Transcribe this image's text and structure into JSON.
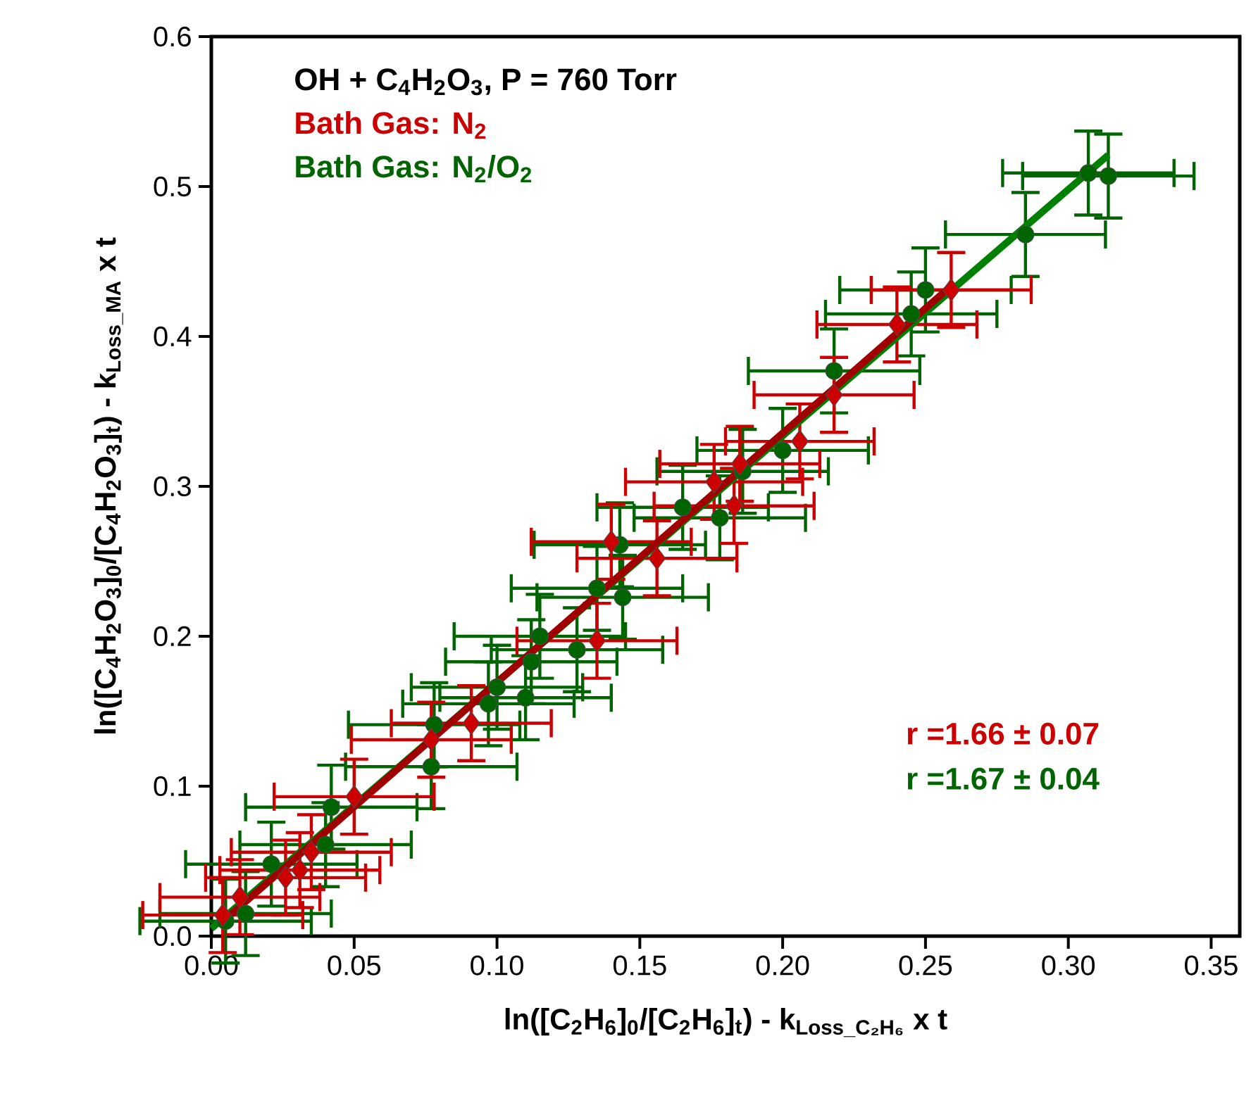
{
  "chart_data": {
    "type": "scatter",
    "title": "OH +  C$_{4}$H$_{2}$O$_{3}$, P = 760 Torr",
    "xlabel": "ln([C$_{2}$H$_{6}$]$_{0}$/[C$_{2}$H$_{6}$]$_{t}$) - k$_{Loss_C₂H₆}$ x t",
    "ylabel": "ln([C$_{4}$H$_{2}$O$_{3}$]$_{0}$/[C$_{4}$H$_{2}$O$_{3}$]$_{t}$) - k$_{Loss_MA}$ x t",
    "xlim": [
      0,
      0.36
    ],
    "ylim": [
      0,
      0.6
    ],
    "xticks": [
      {
        "value": 0,
        "label": "0.00"
      },
      {
        "value": 0.05,
        "label": "0.05"
      },
      {
        "value": 0.1,
        "label": "0.10"
      },
      {
        "value": 0.15,
        "label": "0.15"
      },
      {
        "value": 0.2,
        "label": "0.20"
      },
      {
        "value": 0.25,
        "label": "0.25"
      },
      {
        "value": 0.3,
        "label": "0.30"
      },
      {
        "value": 0.35,
        "label": "0.35"
      }
    ],
    "yticks": [
      {
        "value": 0,
        "label": "0.0"
      },
      {
        "value": 0.1,
        "label": "0.1"
      },
      {
        "value": 0.2,
        "label": "0.2"
      },
      {
        "value": 0.3,
        "label": "0.3"
      },
      {
        "value": 0.4,
        "label": "0.4"
      },
      {
        "value": 0.5,
        "label": "0.5"
      },
      {
        "value": 0.6,
        "label": "0.6"
      }
    ],
    "grid": false,
    "legend": "top left",
    "annotations": [
      "r =1.66 ± 0.07",
      "r =1.67 ± 0.04"
    ],
    "series": [
      {
        "name": "Bath Gas: N$_{2}$/O$_{2}$",
        "type": "scatter",
        "marker": "circle",
        "color": "#006400",
        "x": [
          0.005,
          0.012,
          0.021,
          0.04,
          0.042,
          0.077,
          0.078,
          0.097,
          0.1,
          0.11,
          0.112,
          0.115,
          0.128,
          0.135,
          0.143,
          0.144,
          0.165,
          0.178,
          0.186,
          0.2,
          0.218,
          0.245,
          0.25,
          0.285,
          0.307,
          0.314
        ],
        "values": [
          0.01,
          0.015,
          0.048,
          0.061,
          0.086,
          0.113,
          0.141,
          0.155,
          0.166,
          0.159,
          0.183,
          0.2,
          0.191,
          0.232,
          0.261,
          0.226,
          0.286,
          0.279,
          0.31,
          0.324,
          0.377,
          0.415,
          0.431,
          0.468,
          0.509,
          0.507
        ],
        "xerrors": [
          0.03,
          0.03,
          0.03,
          0.03,
          0.03,
          0.03,
          0.03,
          0.03,
          0.03,
          0.03,
          0.03,
          0.03,
          0.03,
          0.03,
          0.03,
          0.03,
          0.03,
          0.03,
          0.03,
          0.03,
          0.03,
          0.03,
          0.03,
          0.028,
          0.03,
          0.03
        ],
        "errors": [
          0.028,
          0.028,
          0.028,
          0.028,
          0.028,
          0.028,
          0.028,
          0.028,
          0.028,
          0.028,
          0.028,
          0.028,
          0.028,
          0.028,
          0.028,
          0.028,
          0.028,
          0.028,
          0.028,
          0.028,
          0.028,
          0.028,
          0.028,
          0.028,
          0.028,
          0.028
        ]
      },
      {
        "name": "Bath Gas: N$_{2}$",
        "type": "scatter",
        "marker": "diamond",
        "color": "#cc0000",
        "x": [
          0.004,
          0.01,
          0.026,
          0.031,
          0.035,
          0.05,
          0.077,
          0.091,
          0.135,
          0.14,
          0.156,
          0.176,
          0.183,
          0.185,
          0.206,
          0.218,
          0.24,
          0.259
        ],
        "values": [
          0.014,
          0.026,
          0.039,
          0.044,
          0.056,
          0.093,
          0.131,
          0.142,
          0.197,
          0.263,
          0.252,
          0.303,
          0.287,
          0.315,
          0.33,
          0.361,
          0.408,
          0.431
        ],
        "xerrors": [
          0.028,
          0.028,
          0.028,
          0.028,
          0.028,
          0.028,
          0.028,
          0.028,
          0.028,
          0.028,
          0.028,
          0.031,
          0.028,
          0.028,
          0.026,
          0.028,
          0.028,
          0.028
        ],
        "errors": [
          0.025,
          0.025,
          0.025,
          0.025,
          0.025,
          0.025,
          0.025,
          0.025,
          0.025,
          0.025,
          0.025,
          0.025,
          0.025,
          0.025,
          0.025,
          0.025,
          0.025,
          0.025
        ]
      },
      {
        "type": "line",
        "line_style": "solid",
        "color": "#008000",
        "x": [
          0.0,
          0.314
        ],
        "values": [
          0.005,
          0.521
        ]
      },
      {
        "type": "line",
        "line_style": "solid",
        "color": "#a00000",
        "x": [
          0.003,
          0.258
        ],
        "values": [
          0.008,
          0.432
        ]
      }
    ]
  }
}
